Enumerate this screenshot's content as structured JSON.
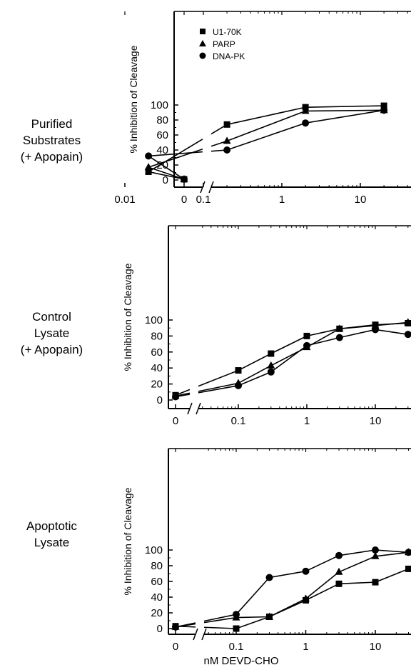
{
  "panels": [
    {
      "label_lines": [
        "Purified",
        "Substrates",
        "(+ Apopain)"
      ]
    },
    {
      "label_lines": [
        "Control",
        "Lysate",
        "(+ Apopain)"
      ]
    },
    {
      "label_lines": [
        "Apoptotic",
        "Lysate"
      ]
    }
  ],
  "chart_data": [
    {
      "type": "line",
      "xscale": "log (with break after 0)",
      "xlabel": "",
      "ylabel": "% Inhibition of Cleavage",
      "ylim": [
        0,
        100
      ],
      "yticks": [
        0,
        20,
        40,
        60,
        80,
        100
      ],
      "xtick_labels": [
        "0",
        "0.01",
        "0.1",
        "1",
        "10"
      ],
      "xtick_values": [
        0,
        0.01,
        0.1,
        1,
        10
      ],
      "legend": "top-left",
      "series": [
        {
          "name": "U1-70K",
          "marker": "square",
          "points": [
            [
              0,
              1
            ],
            [
              0.02,
              11
            ],
            [
              0.2,
              74
            ],
            [
              2,
              97
            ],
            [
              20,
              99
            ]
          ]
        },
        {
          "name": "PARP",
          "marker": "triangle",
          "points": [
            [
              0,
              1
            ],
            [
              0.02,
              17
            ],
            [
              0.2,
              52
            ],
            [
              2,
              92
            ],
            [
              20,
              93
            ]
          ]
        },
        {
          "name": "DNA-PK",
          "marker": "circle",
          "points": [
            [
              0,
              1
            ],
            [
              0.02,
              32
            ],
            [
              0.2,
              40
            ],
            [
              2,
              76
            ],
            [
              20,
              93
            ]
          ]
        }
      ]
    },
    {
      "type": "line",
      "xscale": "log (with break after 0)",
      "xlabel": "",
      "ylabel": "% Inhibition of Cleavage",
      "ylim": [
        0,
        100
      ],
      "yticks": [
        0,
        20,
        40,
        60,
        80,
        100
      ],
      "xtick_labels": [
        "0",
        "0.1",
        "1",
        "10"
      ],
      "xtick_values": [
        0,
        0.1,
        1,
        10
      ],
      "series": [
        {
          "name": "U1-70K",
          "marker": "square",
          "points": [
            [
              0,
              6
            ],
            [
              0.1,
              37
            ],
            [
              0.3,
              58
            ],
            [
              1,
              80
            ],
            [
              3,
              89
            ],
            [
              10,
              94
            ],
            [
              30,
              96
            ]
          ]
        },
        {
          "name": "PARP",
          "marker": "triangle",
          "points": [
            [
              0,
              5
            ],
            [
              0.1,
              21
            ],
            [
              0.3,
              43
            ],
            [
              1,
              66
            ],
            [
              3,
              89
            ],
            [
              10,
              93
            ],
            [
              30,
              97
            ]
          ]
        },
        {
          "name": "DNA-PK",
          "marker": "circle",
          "points": [
            [
              0,
              4
            ],
            [
              0.1,
              18
            ],
            [
              0.3,
              35
            ],
            [
              1,
              68
            ],
            [
              3,
              78
            ],
            [
              10,
              88
            ],
            [
              30,
              82
            ]
          ]
        }
      ]
    },
    {
      "type": "line",
      "xscale": "log (with break after 0)",
      "xlabel": "nM DEVD-CHO",
      "ylabel": "% Inhibition of Cleavage",
      "ylim": [
        0,
        100
      ],
      "yticks": [
        0,
        20,
        40,
        60,
        80,
        100
      ],
      "xtick_labels": [
        "0",
        "0.1",
        "1",
        "10"
      ],
      "xtick_values": [
        0,
        0.1,
        1,
        10
      ],
      "series": [
        {
          "name": "U1-70K",
          "marker": "square",
          "points": [
            [
              0,
              3
            ],
            [
              0.1,
              0
            ],
            [
              0.3,
              15
            ],
            [
              1,
              36
            ],
            [
              3,
              57
            ],
            [
              10,
              59
            ],
            [
              30,
              76
            ]
          ]
        },
        {
          "name": "PARP",
          "marker": "triangle",
          "points": [
            [
              0,
              2
            ],
            [
              0.1,
              14
            ],
            [
              0.3,
              15
            ],
            [
              1,
              38
            ],
            [
              3,
              72
            ],
            [
              10,
              92
            ],
            [
              30,
              97
            ]
          ]
        },
        {
          "name": "DNA-PK",
          "marker": "circle",
          "points": [
            [
              0,
              2
            ],
            [
              0.1,
              18
            ],
            [
              0.3,
              65
            ],
            [
              1,
              73
            ],
            [
              3,
              93
            ],
            [
              10,
              100
            ],
            [
              30,
              97
            ]
          ]
        }
      ]
    }
  ]
}
